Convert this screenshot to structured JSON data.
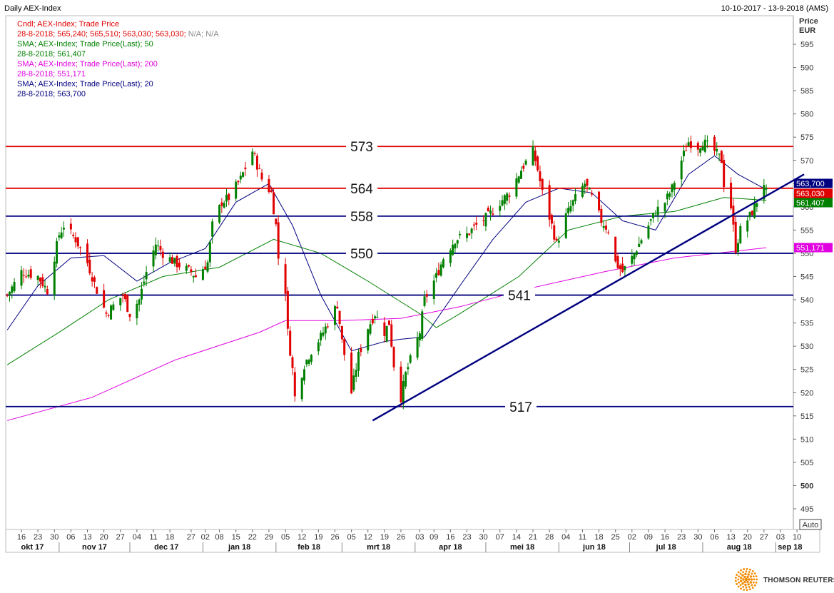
{
  "header": {
    "title": "Daily AEX-Index",
    "date_range": "10-10-2017 - 13-9-2018 (AMS)"
  },
  "legend": [
    {
      "text": "Cndl; AEX-Index; Trade Price",
      "color": "#e00000"
    },
    {
      "text": "28-8-2018; 565,240; 565,510; 563,030; 563,030;",
      "color": "#e00000",
      "suffix": " N/A; N/A",
      "suffix_color": "#888888"
    },
    {
      "text": "SMA; AEX-Index; Trade Price(Last);  50",
      "color": "#008000"
    },
    {
      "text": "28-8-2018; 561,407",
      "color": "#008000"
    },
    {
      "text": "SMA; AEX-Index; Trade Price(Last);  200",
      "color": "#e000e0"
    },
    {
      "text": "28-8-2018; 551,171",
      "color": "#e000e0"
    },
    {
      "text": "SMA; AEX-Index; Trade Price(Last);  20",
      "color": "#000080"
    },
    {
      "text": "28-8-2018; 563,700",
      "color": "#000080"
    }
  ],
  "axis": {
    "y_title_1": "Price",
    "y_title_2": "EUR",
    "auto_button": "Auto"
  },
  "branding": {
    "name": "THOMSON REUTERS",
    "logo_icon": "thomson-reuters-dot-logo"
  },
  "chart_data": {
    "type": "candlestick",
    "title": "Daily AEX-Index",
    "ylabel": "Price EUR",
    "ylim": [
      490,
      597
    ],
    "yticks": [
      495,
      500,
      505,
      510,
      515,
      520,
      525,
      530,
      535,
      540,
      545,
      550,
      555,
      560,
      565,
      570,
      575,
      580,
      585,
      590,
      595
    ],
    "grid": false,
    "x_day_labels": [
      "16",
      "23",
      "30",
      "06",
      "13",
      "20",
      "27",
      "04",
      "11",
      "18",
      "27",
      "02",
      "08",
      "15",
      "22",
      "29",
      "05",
      "12",
      "19",
      "26",
      "05",
      "12",
      "19",
      "26",
      "03",
      "09",
      "16",
      "23",
      "30",
      "07",
      "14",
      "21",
      "28",
      "04",
      "11",
      "18",
      "25",
      "02",
      "09",
      "16",
      "23",
      "30",
      "06",
      "13",
      "20",
      "27",
      "03",
      "10"
    ],
    "x_month_labels": [
      "okt 17",
      "nov 17",
      "dec 17",
      "jan 18",
      "feb 18",
      "mrt 18",
      "apr 18",
      "mei 18",
      "jun 18",
      "jul 18",
      "aug 18",
      "sep 18"
    ],
    "horizontal_levels": [
      {
        "label": "573",
        "value": 573,
        "color": "#e00000"
      },
      {
        "label": "564",
        "value": 564,
        "color": "#e00000"
      },
      {
        "label": "558",
        "value": 558,
        "color": "#000080"
      },
      {
        "label": "550",
        "value": 550,
        "color": "#000080"
      },
      {
        "label": "541",
        "value": 541,
        "color": "#000080"
      },
      {
        "label": "517",
        "value": 517,
        "color": "#000080"
      }
    ],
    "trendline": {
      "start": {
        "date": "2018-03-14",
        "value": 514
      },
      "end": {
        "date": "2018-09-13",
        "value": 567
      },
      "color": "#000080"
    },
    "last_value_badges": [
      {
        "label": "563,700",
        "value": 563.7,
        "color": "#000080"
      },
      {
        "label": "563,030",
        "value": 563.03,
        "color": "#e00000"
      },
      {
        "label": "561,407",
        "value": 561.407,
        "color": "#008000"
      },
      {
        "label": "551,171",
        "value": 551.171,
        "color": "#e000e0"
      }
    ],
    "close_anchors": [
      {
        "date": "2017-10-10",
        "close": 541
      },
      {
        "date": "2017-10-16",
        "close": 546
      },
      {
        "date": "2017-10-23",
        "close": 545
      },
      {
        "date": "2017-10-27",
        "close": 542
      },
      {
        "date": "2017-11-01",
        "close": 554
      },
      {
        "date": "2017-11-03",
        "close": 556
      },
      {
        "date": "2017-11-08",
        "close": 553
      },
      {
        "date": "2017-11-13",
        "close": 548
      },
      {
        "date": "2017-11-17",
        "close": 542
      },
      {
        "date": "2017-11-21",
        "close": 537
      },
      {
        "date": "2017-11-28",
        "close": 541
      },
      {
        "date": "2017-12-01",
        "close": 537
      },
      {
        "date": "2017-12-05",
        "close": 540
      },
      {
        "date": "2017-12-08",
        "close": 546
      },
      {
        "date": "2017-12-12",
        "close": 552
      },
      {
        "date": "2017-12-15",
        "close": 550
      },
      {
        "date": "2017-12-20",
        "close": 548
      },
      {
        "date": "2017-12-27",
        "close": 546
      },
      {
        "date": "2017-12-29",
        "close": 545
      },
      {
        "date": "2018-01-03",
        "close": 548
      },
      {
        "date": "2018-01-05",
        "close": 556
      },
      {
        "date": "2018-01-09",
        "close": 561
      },
      {
        "date": "2018-01-12",
        "close": 562
      },
      {
        "date": "2018-01-17",
        "close": 566
      },
      {
        "date": "2018-01-22",
        "close": 572
      },
      {
        "date": "2018-01-24",
        "close": 569
      },
      {
        "date": "2018-01-26",
        "close": 566
      },
      {
        "date": "2018-01-30",
        "close": 563
      },
      {
        "date": "2018-02-01",
        "close": 556
      },
      {
        "date": "2018-02-02",
        "close": 549
      },
      {
        "date": "2018-02-05",
        "close": 542
      },
      {
        "date": "2018-02-06",
        "close": 533
      },
      {
        "date": "2018-02-08",
        "close": 525
      },
      {
        "date": "2018-02-09",
        "close": 519
      },
      {
        "date": "2018-02-13",
        "close": 526
      },
      {
        "date": "2018-02-16",
        "close": 529
      },
      {
        "date": "2018-02-20",
        "close": 532
      },
      {
        "date": "2018-02-23",
        "close": 535
      },
      {
        "date": "2018-02-27",
        "close": 539
      },
      {
        "date": "2018-03-01",
        "close": 531
      },
      {
        "date": "2018-03-05",
        "close": 520
      },
      {
        "date": "2018-03-08",
        "close": 528
      },
      {
        "date": "2018-03-12",
        "close": 534
      },
      {
        "date": "2018-03-15",
        "close": 537
      },
      {
        "date": "2018-03-19",
        "close": 533
      },
      {
        "date": "2018-03-21",
        "close": 535
      },
      {
        "date": "2018-03-23",
        "close": 526
      },
      {
        "date": "2018-03-26",
        "close": 519
      },
      {
        "date": "2018-03-28",
        "close": 524
      },
      {
        "date": "2018-04-03",
        "close": 533
      },
      {
        "date": "2018-04-05",
        "close": 540
      },
      {
        "date": "2018-04-10",
        "close": 545
      },
      {
        "date": "2018-04-13",
        "close": 549
      },
      {
        "date": "2018-04-18",
        "close": 553
      },
      {
        "date": "2018-04-23",
        "close": 554
      },
      {
        "date": "2018-04-27",
        "close": 556
      },
      {
        "date": "2018-05-02",
        "close": 558
      },
      {
        "date": "2018-05-07",
        "close": 561
      },
      {
        "date": "2018-05-11",
        "close": 563
      },
      {
        "date": "2018-05-16",
        "close": 568
      },
      {
        "date": "2018-05-21",
        "close": 572
      },
      {
        "date": "2018-05-23",
        "close": 568
      },
      {
        "date": "2018-05-25",
        "close": 563
      },
      {
        "date": "2018-05-29",
        "close": 556
      },
      {
        "date": "2018-05-31",
        "close": 552
      },
      {
        "date": "2018-06-04",
        "close": 558
      },
      {
        "date": "2018-06-07",
        "close": 561
      },
      {
        "date": "2018-06-12",
        "close": 565
      },
      {
        "date": "2018-06-15",
        "close": 562
      },
      {
        "date": "2018-06-19",
        "close": 557
      },
      {
        "date": "2018-06-22",
        "close": 555
      },
      {
        "date": "2018-06-25",
        "close": 548
      },
      {
        "date": "2018-06-28",
        "close": 546
      },
      {
        "date": "2018-07-02",
        "close": 549
      },
      {
        "date": "2018-07-05",
        "close": 552
      },
      {
        "date": "2018-07-09",
        "close": 556
      },
      {
        "date": "2018-07-12",
        "close": 559
      },
      {
        "date": "2018-07-16",
        "close": 561
      },
      {
        "date": "2018-07-19",
        "close": 564
      },
      {
        "date": "2018-07-23",
        "close": 570
      },
      {
        "date": "2018-07-26",
        "close": 574
      },
      {
        "date": "2018-07-30",
        "close": 573
      },
      {
        "date": "2018-08-01",
        "close": 574
      },
      {
        "date": "2018-08-06",
        "close": 572
      },
      {
        "date": "2018-08-09",
        "close": 570
      },
      {
        "date": "2018-08-10",
        "close": 565
      },
      {
        "date": "2018-08-13",
        "close": 560
      },
      {
        "date": "2018-08-15",
        "close": 551
      },
      {
        "date": "2018-08-17",
        "close": 555
      },
      {
        "date": "2018-08-21",
        "close": 558
      },
      {
        "date": "2018-08-23",
        "close": 560
      },
      {
        "date": "2018-08-27",
        "close": 565.2
      },
      {
        "date": "2018-08-28",
        "close": 563.03
      }
    ],
    "series": [
      {
        "name": "AEX-Index",
        "kind": "candlestick",
        "up_color": "#008000",
        "down_color": "#e00000"
      },
      {
        "name": "SMA 20",
        "kind": "line",
        "color": "#000080",
        "points": [
          [
            "2017-10-10",
            533.5
          ],
          [
            "2017-10-23",
            543
          ],
          [
            "2017-11-06",
            549
          ],
          [
            "2017-11-20",
            549.5
          ],
          [
            "2017-12-04",
            544
          ],
          [
            "2017-12-18",
            548
          ],
          [
            "2018-01-02",
            551
          ],
          [
            "2018-01-15",
            561
          ],
          [
            "2018-01-29",
            565
          ],
          [
            "2018-02-08",
            556
          ],
          [
            "2018-02-20",
            541
          ],
          [
            "2018-03-05",
            529
          ],
          [
            "2018-03-19",
            531
          ],
          [
            "2018-03-26",
            531.5
          ],
          [
            "2018-04-05",
            532
          ],
          [
            "2018-04-20",
            543
          ],
          [
            "2018-05-04",
            553
          ],
          [
            "2018-05-18",
            561
          ],
          [
            "2018-06-01",
            564
          ],
          [
            "2018-06-15",
            563
          ],
          [
            "2018-06-28",
            557
          ],
          [
            "2018-07-12",
            555
          ],
          [
            "2018-07-26",
            567
          ],
          [
            "2018-08-06",
            571
          ],
          [
            "2018-08-16",
            567
          ],
          [
            "2018-08-28",
            563.7
          ]
        ]
      },
      {
        "name": "SMA 50",
        "kind": "line",
        "color": "#008000",
        "points": [
          [
            "2017-10-10",
            526
          ],
          [
            "2017-11-01",
            533
          ],
          [
            "2017-11-22",
            540
          ],
          [
            "2017-12-15",
            545
          ],
          [
            "2018-01-08",
            547
          ],
          [
            "2018-01-31",
            553
          ],
          [
            "2018-02-20",
            550
          ],
          [
            "2018-03-12",
            544
          ],
          [
            "2018-04-03",
            537
          ],
          [
            "2018-04-10",
            534
          ],
          [
            "2018-04-20",
            537
          ],
          [
            "2018-05-15",
            545
          ],
          [
            "2018-06-05",
            555
          ],
          [
            "2018-06-28",
            558
          ],
          [
            "2018-07-20",
            559
          ],
          [
            "2018-08-10",
            562
          ],
          [
            "2018-08-28",
            561.4
          ]
        ]
      },
      {
        "name": "SMA 200",
        "kind": "line",
        "color": "#e000e0",
        "points": [
          [
            "2017-10-10",
            514
          ],
          [
            "2017-11-15",
            519
          ],
          [
            "2017-12-20",
            527
          ],
          [
            "2018-01-25",
            533
          ],
          [
            "2018-02-05",
            535.5
          ],
          [
            "2018-02-28",
            535.5
          ],
          [
            "2018-03-26",
            536
          ],
          [
            "2018-04-20",
            538.5
          ],
          [
            "2018-05-20",
            542.5
          ],
          [
            "2018-06-20",
            546
          ],
          [
            "2018-07-20",
            549
          ],
          [
            "2018-08-28",
            551.2
          ]
        ]
      }
    ]
  }
}
